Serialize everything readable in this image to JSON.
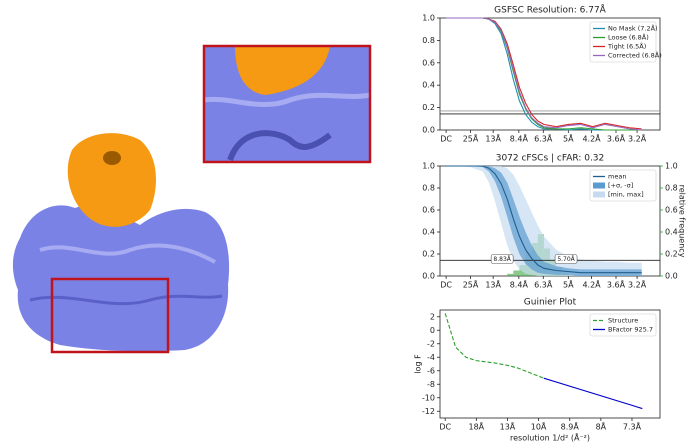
{
  "chart_data": [
    {
      "type": "line",
      "title": "GSFSC Resolution: 6.77Å",
      "x": [
        0,
        0.02,
        0.04,
        0.06,
        0.07,
        0.08,
        0.09,
        0.1,
        0.11,
        0.12,
        0.13,
        0.14,
        0.15,
        0.16,
        0.18,
        0.2,
        0.22,
        0.24,
        0.26,
        0.28,
        0.3,
        0.32
      ],
      "series": [
        {
          "name": "No Mask (7.2Å)",
          "color": "#1f8fb0",
          "values": [
            1,
            1,
            1,
            1,
            0.99,
            0.95,
            0.86,
            0.68,
            0.45,
            0.26,
            0.14,
            0.07,
            0.03,
            0.01,
            0.01,
            0,
            0.01,
            0,
            0,
            0,
            0,
            0
          ]
        },
        {
          "name": "Loose (6.8Å)",
          "color": "#2ca02c",
          "values": [
            1,
            1,
            1,
            1,
            0.99,
            0.96,
            0.88,
            0.73,
            0.52,
            0.32,
            0.19,
            0.1,
            0.05,
            0.02,
            0.01,
            0.01,
            0.02,
            0.01,
            0,
            0,
            0,
            0
          ]
        },
        {
          "name": "Tight (6.5Å)",
          "color": "#d62728",
          "values": [
            1,
            1,
            1,
            1,
            0.99,
            0.97,
            0.9,
            0.77,
            0.58,
            0.38,
            0.24,
            0.14,
            0.08,
            0.05,
            0.03,
            0.05,
            0.06,
            0.03,
            0.06,
            0.04,
            0.02,
            0.01
          ]
        },
        {
          "name": "Corrected (6.8Å)",
          "color": "#9467bd",
          "values": [
            1,
            1,
            1,
            1,
            0.99,
            0.96,
            0.89,
            0.74,
            0.54,
            0.34,
            0.2,
            0.11,
            0.06,
            0.03,
            0.02,
            0.04,
            0.05,
            0.02,
            0.05,
            0.03,
            0.01,
            0
          ]
        }
      ],
      "hlines": [
        0.143,
        0.17
      ],
      "xlim": [
        -0.01,
        0.35
      ],
      "ylim": [
        0,
        1
      ],
      "xticks": [
        {
          "value": 0,
          "label": "DC"
        },
        {
          "value": 0.04,
          "label": "25Å"
        },
        {
          "value": 0.077,
          "label": "13Å"
        },
        {
          "value": 0.119,
          "label": "8.4Å"
        },
        {
          "value": 0.159,
          "label": "6.3Å"
        },
        {
          "value": 0.2,
          "label": "5Å"
        },
        {
          "value": 0.238,
          "label": "4.2Å"
        },
        {
          "value": 0.278,
          "label": "3.6Å"
        },
        {
          "value": 0.3125,
          "label": "3.2Å"
        }
      ],
      "yticks": [
        {
          "value": 0,
          "label": "0.0"
        },
        {
          "value": 0.2,
          "label": "0.2"
        },
        {
          "value": 0.4,
          "label": "0.4"
        },
        {
          "value": 0.6,
          "label": "0.6"
        },
        {
          "value": 0.8,
          "label": "0.8"
        },
        {
          "value": 1,
          "label": "1.0"
        }
      ],
      "legend": "upper right"
    },
    {
      "type": "line",
      "title": "3072 cFSCs | cFAR: 0.32",
      "x": [
        0,
        0.02,
        0.04,
        0.06,
        0.07,
        0.08,
        0.09,
        0.1,
        0.11,
        0.12,
        0.13,
        0.14,
        0.15,
        0.16,
        0.18,
        0.2,
        0.22,
        0.24,
        0.26,
        0.28,
        0.3,
        0.32
      ],
      "series": [
        {
          "name": "mean",
          "color": "#1f5f8f",
          "values": [
            1,
            1,
            1,
            1,
            0.98,
            0.93,
            0.84,
            0.7,
            0.52,
            0.36,
            0.24,
            0.16,
            0.1,
            0.07,
            0.05,
            0.04,
            0.03,
            0.03,
            0.03,
            0.03,
            0.03,
            0.03
          ]
        },
        {
          "name": "[+σ, -σ]",
          "color": "#5b9bd0",
          "lower": [
            1,
            1,
            1,
            0.99,
            0.95,
            0.86,
            0.72,
            0.54,
            0.35,
            0.2,
            0.11,
            0.06,
            0.03,
            0.02,
            0.01,
            0.01,
            0,
            0,
            0,
            0,
            0,
            0
          ],
          "upper": [
            1,
            1,
            1,
            1,
            1,
            0.98,
            0.94,
            0.85,
            0.7,
            0.54,
            0.4,
            0.28,
            0.19,
            0.13,
            0.09,
            0.07,
            0.06,
            0.06,
            0.06,
            0.06,
            0.06,
            0.06
          ]
        },
        {
          "name": "[min, max]",
          "color": "#c6dbef",
          "lower": [
            1,
            1,
            0.99,
            0.95,
            0.85,
            0.68,
            0.48,
            0.28,
            0.14,
            0.06,
            0.02,
            0.01,
            0,
            0,
            0,
            0,
            0,
            0,
            0,
            0,
            0,
            0
          ],
          "upper": [
            1,
            1,
            1,
            1,
            1,
            1,
            1,
            0.98,
            0.92,
            0.82,
            0.7,
            0.58,
            0.46,
            0.36,
            0.24,
            0.18,
            0.15,
            0.14,
            0.13,
            0.13,
            0.12,
            0.12
          ]
        }
      ],
      "histogram": {
        "color": "#4caf50",
        "axis": "y2",
        "bins": [
          0.1,
          0.11,
          0.12,
          0.13,
          0.14,
          0.15,
          0.16,
          0.17,
          0.18,
          0.19,
          0.2
        ],
        "counts": [
          0.02,
          0.05,
          0.1,
          0.22,
          0.3,
          0.38,
          0.25,
          0.15,
          0.08,
          0.03
        ]
      },
      "hlines": [
        0.143
      ],
      "annotations": [
        {
          "text": "8.83Å",
          "x": 0.113,
          "y": 0.15
        },
        {
          "text": "5.70Å",
          "x": 0.175,
          "y": 0.15
        }
      ],
      "y2label": "relative frequency",
      "y2color": "#2ca02c",
      "xlim": [
        -0.01,
        0.35
      ],
      "ylim": [
        0,
        1
      ],
      "y2lim": [
        0,
        1
      ],
      "xticks": [
        {
          "value": 0,
          "label": "DC"
        },
        {
          "value": 0.04,
          "label": "25Å"
        },
        {
          "value": 0.077,
          "label": "13Å"
        },
        {
          "value": 0.119,
          "label": "8.4Å"
        },
        {
          "value": 0.159,
          "label": "6.3Å"
        },
        {
          "value": 0.2,
          "label": "5Å"
        },
        {
          "value": 0.238,
          "label": "4.2Å"
        },
        {
          "value": 0.278,
          "label": "3.6Å"
        },
        {
          "value": 0.3125,
          "label": "3.2Å"
        }
      ],
      "yticks": [
        {
          "value": 0,
          "label": "0.0"
        },
        {
          "value": 0.2,
          "label": "0.2"
        },
        {
          "value": 0.4,
          "label": "0.4"
        },
        {
          "value": 0.6,
          "label": "0.6"
        },
        {
          "value": 0.8,
          "label": "0.8"
        },
        {
          "value": 1,
          "label": "1.0"
        }
      ],
      "y2ticks": [
        {
          "value": 0,
          "label": "0.0"
        },
        {
          "value": 0.2,
          "label": "0.2"
        },
        {
          "value": 0.4,
          "label": "0.4"
        },
        {
          "value": 0.6,
          "label": "0.6"
        },
        {
          "value": 0.8,
          "label": "0.8"
        },
        {
          "value": 1,
          "label": "1.0"
        }
      ],
      "legend": "upper right"
    },
    {
      "type": "line",
      "title": "Guinier Plot",
      "xlabel": "resolution 1/d² (Å⁻²)",
      "ylabel": "log F",
      "series": [
        {
          "name": "Structure",
          "color": "#2ca02c",
          "dash": true,
          "x": [
            0,
            0.0005,
            0.001,
            0.002,
            0.003,
            0.004,
            0.005,
            0.006,
            0.007,
            0.008,
            0.009,
            0.0095
          ],
          "values": [
            2.5,
            0,
            -2.5,
            -4,
            -4.5,
            -4.7,
            -4.9,
            -5.2,
            -5.6,
            -6.2,
            -6.8,
            -7.1
          ]
        },
        {
          "name": "BFactor 925.7",
          "color": "#0000cc",
          "x": [
            0.0095,
            0.019
          ],
          "values": [
            -7.1,
            -11.6
          ]
        }
      ],
      "xlim": [
        -0.0005,
        0.0207
      ],
      "ylim": [
        -13,
        3
      ],
      "xticks": [
        {
          "value": 0,
          "label": "DC"
        },
        {
          "value": 0.003,
          "label": "18Å"
        },
        {
          "value": 0.006,
          "label": "13Å"
        },
        {
          "value": 0.009,
          "label": "10Å"
        },
        {
          "value": 0.012,
          "label": "8.9Å"
        },
        {
          "value": 0.015,
          "label": "8Å"
        },
        {
          "value": 0.018,
          "label": "7.3Å"
        }
      ],
      "yticks": [
        2,
        0,
        -2,
        -4,
        -6,
        -8,
        -10,
        -12
      ],
      "legend": "upper right"
    }
  ]
}
